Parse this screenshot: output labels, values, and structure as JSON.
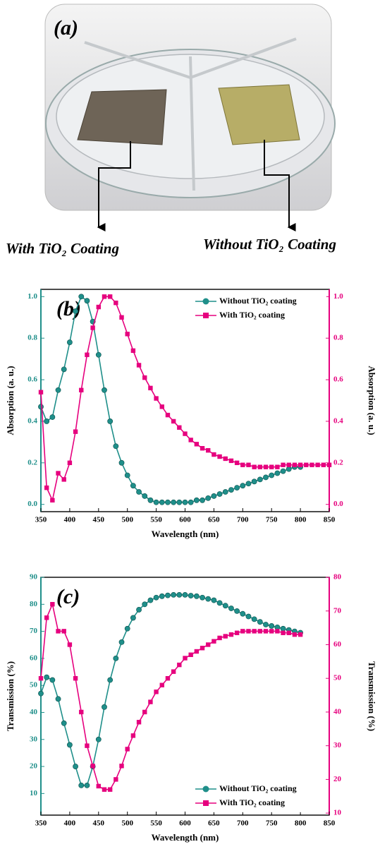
{
  "photo": {
    "label": "(a)",
    "left_caption": "With TiO₂ Coating",
    "right_caption": "Without TiO₂ Coating"
  },
  "chart_data": [
    {
      "type": "line",
      "panel_label": "(b)",
      "x_label": "Wavelength (nm)",
      "y_label": "Absorption (a. u.)",
      "y2_label": "Absorption (a. u.)",
      "x": [
        350,
        360,
        370,
        380,
        390,
        400,
        410,
        420,
        430,
        440,
        450,
        460,
        470,
        480,
        490,
        500,
        510,
        520,
        530,
        540,
        550,
        560,
        570,
        580,
        590,
        600,
        610,
        620,
        630,
        640,
        650,
        660,
        670,
        680,
        690,
        700,
        710,
        720,
        730,
        740,
        750,
        760,
        770,
        780,
        790,
        800,
        810,
        820,
        830,
        840,
        850
      ],
      "series": [
        {
          "name": "Without TiO₂ coating",
          "color": "#1f8f8a",
          "axis": "y",
          "values": [
            0.47,
            0.4,
            0.42,
            0.55,
            0.65,
            0.78,
            0.93,
            1.0,
            0.98,
            0.88,
            0.72,
            0.55,
            0.4,
            0.28,
            0.2,
            0.14,
            0.09,
            0.06,
            0.04,
            0.02,
            0.01,
            0.01,
            0.01,
            0.01,
            0.01,
            0.01,
            0.01,
            0.02,
            0.02,
            0.03,
            0.04,
            0.05,
            0.06,
            0.07,
            0.08,
            0.09,
            0.1,
            0.11,
            0.12,
            0.13,
            0.14,
            0.15,
            0.16,
            0.17,
            0.18,
            0.18,
            null,
            null,
            null,
            null,
            null
          ]
        },
        {
          "name": "With TiO₂ coating",
          "color": "#e6007e",
          "axis": "y2",
          "values": [
            0.54,
            0.08,
            0.02,
            0.15,
            0.12,
            0.2,
            0.35,
            0.55,
            0.72,
            0.85,
            0.95,
            1.0,
            1.0,
            0.97,
            0.9,
            0.82,
            0.74,
            0.67,
            0.61,
            0.56,
            0.51,
            0.47,
            0.43,
            0.4,
            0.37,
            0.34,
            0.31,
            0.29,
            0.27,
            0.26,
            0.24,
            0.23,
            0.22,
            0.21,
            0.2,
            0.19,
            0.19,
            0.18,
            0.18,
            0.18,
            0.18,
            0.18,
            0.19,
            0.19,
            0.19,
            0.19,
            0.19,
            0.19,
            0.19,
            0.19,
            0.19
          ]
        }
      ],
      "xlim": [
        350,
        850
      ],
      "xticks": [
        350,
        400,
        450,
        500,
        550,
        600,
        650,
        700,
        750,
        800,
        850
      ],
      "ylim": [
        -0.035,
        1.035
      ],
      "yticks": [
        {
          "value": 0,
          "label": "0.0"
        },
        0.2,
        0.4,
        0.6,
        0.8,
        {
          "value": 1,
          "label": "1.0"
        }
      ],
      "y2lim": [
        -0.035,
        1.035
      ],
      "y2ticks": [
        {
          "value": 0,
          "label": "0.0"
        },
        0.2,
        0.4,
        0.6,
        0.8,
        {
          "value": 1,
          "label": "1.0"
        }
      ],
      "legend": "upper right",
      "grid": false
    },
    {
      "type": "line",
      "panel_label": "(c)",
      "x_label": "Wavelength (nm)",
      "y_label": "Transmission (%)",
      "y2_label": "Transmission (%)",
      "x": [
        350,
        360,
        370,
        380,
        390,
        400,
        410,
        420,
        430,
        440,
        450,
        460,
        470,
        480,
        490,
        500,
        510,
        520,
        530,
        540,
        550,
        560,
        570,
        580,
        590,
        600,
        610,
        620,
        630,
        640,
        650,
        660,
        670,
        680,
        690,
        700,
        710,
        720,
        730,
        740,
        750,
        760,
        770,
        780,
        790,
        800,
        810,
        820,
        830,
        840,
        850
      ],
      "series": [
        {
          "name": "Without TiO₂ coating",
          "color": "#1f8f8a",
          "axis": "y",
          "values": [
            47,
            53,
            52,
            45,
            36,
            28,
            20,
            13,
            13,
            20,
            30,
            42,
            52,
            60,
            66,
            71,
            75,
            78,
            80,
            81.5,
            82.5,
            83,
            83.3,
            83.5,
            83.5,
            83.5,
            83.2,
            83,
            82.5,
            82,
            81.5,
            80.5,
            79.5,
            78.5,
            77.5,
            76.5,
            75.5,
            74.5,
            73.5,
            72.5,
            72,
            71.5,
            71,
            70.5,
            70,
            69.5,
            null,
            null,
            null,
            null,
            null
          ]
        },
        {
          "name": "With TiO₂ coating",
          "color": "#e6007e",
          "axis": "y2",
          "values": [
            50,
            68,
            72,
            64,
            64,
            60,
            50,
            40,
            30,
            24,
            18,
            17,
            17,
            20,
            24,
            29,
            33,
            37,
            40,
            43,
            46,
            48,
            50,
            52,
            54,
            56,
            57,
            58,
            59,
            60,
            61,
            62,
            62.5,
            63,
            63.5,
            64,
            64,
            64,
            64,
            64,
            64,
            64,
            63.5,
            63.5,
            63,
            63,
            null,
            null,
            null,
            null,
            null
          ]
        }
      ],
      "xlim": [
        350,
        850
      ],
      "xticks": [
        350,
        400,
        450,
        500,
        550,
        600,
        650,
        700,
        750,
        800,
        850
      ],
      "ylim": [
        2,
        90
      ],
      "yticks": [
        10,
        20,
        30,
        40,
        50,
        60,
        70,
        80,
        90
      ],
      "y2lim": [
        9.4,
        80
      ],
      "y2ticks": [
        10,
        20,
        30,
        40,
        50,
        60,
        70,
        80
      ],
      "legend": "lower right",
      "grid": false
    }
  ]
}
